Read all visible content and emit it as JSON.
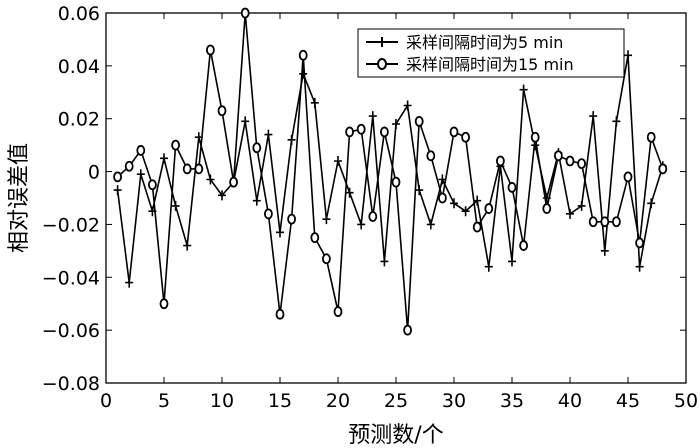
{
  "chart_data": {
    "type": "line",
    "xlabel": "预测数/个",
    "ylabel": "相对误差值",
    "xlim": [
      0,
      50
    ],
    "ylim": [
      -0.08,
      0.06
    ],
    "x_ticks": [
      "0",
      "5",
      "10",
      "15",
      "20",
      "25",
      "30",
      "35",
      "40",
      "45",
      "50"
    ],
    "y_ticks": [
      "0.06",
      "0.04",
      "0.02",
      "0",
      "−0.02",
      "−0.04",
      "−0.06",
      "−0.08"
    ],
    "grid": false,
    "legend_position": "top-right",
    "x": [
      1,
      2,
      3,
      4,
      5,
      6,
      7,
      8,
      9,
      10,
      11,
      12,
      13,
      14,
      15,
      16,
      17,
      18,
      19,
      20,
      21,
      22,
      23,
      24,
      25,
      26,
      27,
      28,
      29,
      30,
      31,
      32,
      33,
      34,
      35,
      36,
      37,
      38,
      39,
      40,
      41,
      42,
      43,
      44,
      45,
      46,
      47,
      48
    ],
    "series": [
      {
        "name": "采样间隔时间为5 min",
        "marker": "plus",
        "values": [
          -0.007,
          -0.042,
          -0.001,
          -0.015,
          0.005,
          -0.013,
          -0.028,
          0.013,
          -0.003,
          -0.009,
          -0.004,
          0.019,
          -0.011,
          0.014,
          -0.023,
          0.012,
          0.037,
          0.026,
          -0.018,
          0.004,
          -0.008,
          -0.02,
          0.021,
          -0.034,
          0.018,
          0.025,
          -0.007,
          -0.02,
          -0.003,
          -0.012,
          -0.015,
          -0.011,
          -0.036,
          0.002,
          -0.034,
          0.031,
          0.01,
          -0.01,
          0.007,
          -0.016,
          -0.013,
          0.021,
          -0.03,
          0.019,
          0.044,
          -0.036,
          -0.012,
          0.002
        ]
      },
      {
        "name": "采样间隔时间为15 min",
        "marker": "circle",
        "values": [
          -0.002,
          0.002,
          0.008,
          -0.005,
          -0.05,
          0.01,
          0.001,
          0.001,
          0.046,
          0.023,
          -0.004,
          0.06,
          0.009,
          -0.016,
          -0.054,
          -0.018,
          0.044,
          -0.025,
          -0.033,
          -0.053,
          0.015,
          0.016,
          -0.017,
          0.015,
          -0.004,
          -0.06,
          0.019,
          0.006,
          -0.01,
          0.015,
          0.013,
          -0.021,
          -0.014,
          0.004,
          -0.006,
          -0.028,
          0.013,
          -0.014,
          0.006,
          0.004,
          0.003,
          -0.019,
          -0.019,
          -0.019,
          -0.002,
          -0.027,
          0.013,
          0.001
        ]
      }
    ]
  }
}
